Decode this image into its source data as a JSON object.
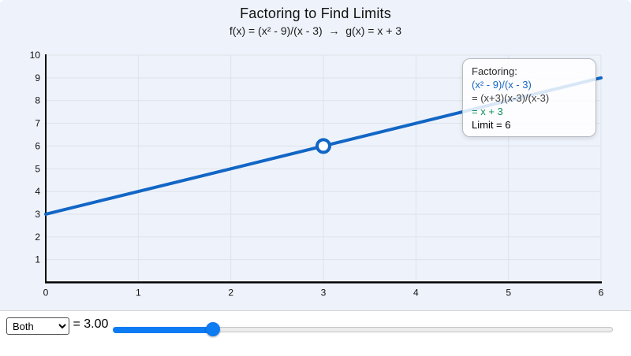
{
  "header": {
    "title": "Factoring to Find Limits",
    "subtitle": "f(x) = (x² - 9)/(x - 3)  →  g(x) = x + 3"
  },
  "chart_data": {
    "type": "line",
    "xlabel": "",
    "ylabel": "",
    "xlim": [
      0,
      6
    ],
    "ylim": [
      0,
      10
    ],
    "x_ticks": [
      0,
      1,
      2,
      3,
      4,
      5,
      6
    ],
    "y_ticks": [
      1,
      2,
      3,
      4,
      5,
      6,
      7,
      8,
      9,
      10
    ],
    "grid": true,
    "series": [
      {
        "name": "g(x) = x + 3",
        "x": [
          0,
          6
        ],
        "y": [
          3,
          9
        ],
        "color": "#1266c5"
      }
    ],
    "hole_point": {
      "x": 3,
      "y": 6,
      "style": "open-circle"
    }
  },
  "tooltip": {
    "heading": "Factoring:",
    "expression": "(x² - 9)/(x - 3)",
    "factored": "= (x+3)(x-3)/(x-3)",
    "simplified": "= x + 3",
    "limit": "Limit = 6"
  },
  "controls": {
    "mode_select": {
      "selected": "Both"
    },
    "slider": {
      "label": "x = 3.00",
      "value": "3.00"
    }
  },
  "colors": {
    "panel_bg": "#eef3fb",
    "grid_line": "#dde3ea",
    "axis": "#000000",
    "graph_line": "#1266c5",
    "hole_fill": "#ffffff",
    "tooltip_expression": "#1565c0",
    "tooltip_simplified": "#0e9158",
    "slider_fill": "#0d7bf2"
  }
}
